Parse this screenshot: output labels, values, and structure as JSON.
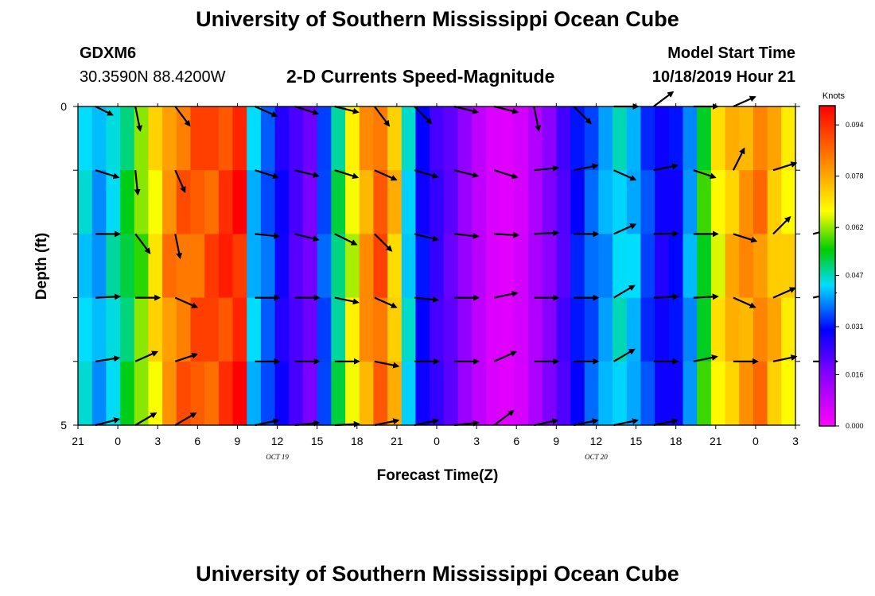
{
  "header": {
    "title": "University of Southern Mississippi Ocean Cube",
    "station": "GDXM6",
    "coords": "30.3590N 88.4200W",
    "subtitle": "2-D Currents Speed-Magnitude",
    "start_label": "Model Start Time",
    "start_value": "10/18/2019 Hour 21"
  },
  "footer": {
    "title": "University of Southern Mississippi Ocean Cube"
  },
  "chart_data": {
    "type": "heatmap",
    "title": "2-D Currents Speed-Magnitude",
    "xlabel": "Forecast Time(Z)",
    "ylabel": "Depth (ft)",
    "x_ticks": [
      "21",
      "0",
      "3",
      "6",
      "9",
      "12",
      "15",
      "18",
      "21",
      "0",
      "3",
      "6",
      "9",
      "12",
      "15",
      "18",
      "21",
      "0",
      "3"
    ],
    "y_ticks": [
      "0",
      "5"
    ],
    "y_range": [
      0,
      5
    ],
    "date_labels": [
      {
        "text": "OCT 19",
        "tick_index": 5
      },
      {
        "text": "OCT 20",
        "tick_index": 13
      }
    ],
    "colorbar": {
      "unit": "Knots",
      "range": [
        0.0,
        0.1
      ],
      "ticks": [
        "0.094",
        "0.078",
        "0.062",
        "0.047",
        "0.031",
        "0.016",
        "0.000"
      ],
      "tick_values": [
        0.094,
        0.078,
        0.062,
        0.047,
        0.031,
        0.016,
        0.0
      ]
    },
    "speed_profile": [
      [
        0,
        0.044
      ],
      [
        1,
        0.04
      ],
      [
        2,
        0.046
      ],
      [
        3,
        0.052
      ],
      [
        4,
        0.06
      ],
      [
        5,
        0.07
      ],
      [
        6,
        0.082
      ],
      [
        7,
        0.086
      ],
      [
        8,
        0.088
      ],
      [
        9,
        0.09
      ],
      [
        10,
        0.093
      ],
      [
        11,
        0.096
      ],
      [
        11.6,
        0.06
      ],
      [
        12,
        0.042
      ],
      [
        13,
        0.036
      ],
      [
        14,
        0.028
      ],
      [
        15,
        0.022
      ],
      [
        16,
        0.018
      ],
      [
        17,
        0.035
      ],
      [
        18,
        0.05
      ],
      [
        19,
        0.066
      ],
      [
        20,
        0.08
      ],
      [
        21,
        0.088
      ],
      [
        22,
        0.074
      ],
      [
        22.7,
        0.06
      ],
      [
        23,
        0.044
      ],
      [
        24,
        0.03
      ],
      [
        25,
        0.024
      ],
      [
        26,
        0.02
      ],
      [
        27,
        0.014
      ],
      [
        28,
        0.009
      ],
      [
        29,
        0.005
      ],
      [
        30,
        0.004
      ],
      [
        31,
        0.006
      ],
      [
        32,
        0.011
      ],
      [
        33,
        0.016
      ],
      [
        34,
        0.022
      ],
      [
        35,
        0.031
      ],
      [
        36,
        0.036
      ],
      [
        37,
        0.04
      ],
      [
        38,
        0.045
      ],
      [
        39,
        0.042
      ],
      [
        40,
        0.034
      ],
      [
        41,
        0.028
      ],
      [
        42,
        0.03
      ],
      [
        43,
        0.04
      ],
      [
        44,
        0.055
      ],
      [
        45,
        0.068
      ],
      [
        46,
        0.076
      ],
      [
        47,
        0.08
      ],
      [
        48,
        0.083
      ],
      [
        49,
        0.075
      ],
      [
        50,
        0.07
      ],
      [
        51,
        0.066
      ]
    ],
    "arrow_rows": [
      [
        [
          1,
          0.7,
          -0.35
        ],
        [
          2,
          0.2,
          -1
        ],
        [
          3,
          0.6,
          -0.8
        ],
        [
          5,
          0.9,
          -0.4
        ],
        [
          6,
          0.95,
          -0.3
        ],
        [
          7,
          0.97,
          -0.24
        ],
        [
          8,
          0.6,
          -0.8
        ],
        [
          9,
          0.7,
          -0.7
        ],
        [
          10,
          0.97,
          -0.24
        ],
        [
          11,
          0.97,
          -0.24
        ],
        [
          12,
          0.2,
          -1
        ],
        [
          13,
          0.7,
          -0.7
        ],
        [
          14,
          1,
          0
        ],
        [
          15,
          0.8,
          0.6
        ],
        [
          16,
          1,
          0
        ],
        [
          17,
          0.9,
          0.4
        ]
      ],
      [
        [
          1,
          0.95,
          -0.3
        ],
        [
          2,
          0.1,
          -1
        ],
        [
          3,
          0.4,
          -0.9
        ],
        [
          5,
          0.95,
          -0.3
        ],
        [
          6,
          0.97,
          -0.24
        ],
        [
          7,
          0.95,
          -0.3
        ],
        [
          8,
          0.9,
          -0.4
        ],
        [
          9,
          0.96,
          -0.28
        ],
        [
          10,
          0.97,
          -0.24
        ],
        [
          11,
          0.95,
          -0.3
        ],
        [
          12,
          0.99,
          0.1
        ],
        [
          13,
          0.98,
          0.2
        ],
        [
          14,
          0.9,
          -0.4
        ],
        [
          15,
          0.98,
          0.2
        ],
        [
          16,
          0.9,
          -0.3
        ],
        [
          17,
          0.45,
          0.9
        ],
        [
          18,
          0.95,
          0.3
        ]
      ],
      [
        [
          1,
          1,
          0
        ],
        [
          2,
          0.6,
          -0.8
        ],
        [
          3,
          0.2,
          -1
        ],
        [
          5,
          0.99,
          -0.1
        ],
        [
          6,
          0.97,
          -0.24
        ],
        [
          7,
          0.9,
          -0.44
        ],
        [
          8,
          0.7,
          -0.7
        ],
        [
          9,
          0.97,
          -0.24
        ],
        [
          10,
          0.99,
          -0.1
        ],
        [
          11,
          1,
          -0.05
        ],
        [
          12,
          1,
          0.05
        ],
        [
          13,
          1,
          0
        ],
        [
          14,
          0.9,
          0.4
        ],
        [
          15,
          1,
          0.02
        ],
        [
          16,
          1,
          0
        ],
        [
          17,
          0.95,
          -0.3
        ],
        [
          18,
          0.7,
          0.7
        ],
        [
          19,
          0.95,
          0.25
        ]
      ],
      [
        [
          1,
          1,
          0.05
        ],
        [
          2,
          1,
          0
        ],
        [
          3,
          0.9,
          -0.4
        ],
        [
          5,
          1,
          0
        ],
        [
          6,
          1,
          0
        ],
        [
          7,
          0.97,
          -0.2
        ],
        [
          8,
          0.9,
          -0.4
        ],
        [
          9,
          0.97,
          -0.1
        ],
        [
          10,
          1,
          0
        ],
        [
          11,
          0.95,
          0.2
        ],
        [
          12,
          1,
          0
        ],
        [
          13,
          1,
          0
        ],
        [
          14,
          0.85,
          0.5
        ],
        [
          15,
          1,
          0.05
        ],
        [
          16,
          1,
          0.05
        ],
        [
          17,
          0.9,
          -0.4
        ],
        [
          18,
          0.9,
          0.4
        ],
        [
          19,
          0.95,
          0.2
        ]
      ],
      [
        [
          1,
          0.97,
          0.15
        ],
        [
          2,
          0.9,
          0.4
        ],
        [
          3,
          0.9,
          0.3
        ],
        [
          5,
          1,
          0
        ],
        [
          6,
          1,
          0
        ],
        [
          7,
          1,
          0
        ],
        [
          8,
          0.98,
          -0.2
        ],
        [
          9,
          1,
          0
        ],
        [
          10,
          1,
          0
        ],
        [
          11,
          0.9,
          0.4
        ],
        [
          12,
          1,
          0
        ],
        [
          13,
          1,
          0
        ],
        [
          14,
          0.85,
          0.5
        ],
        [
          15,
          1,
          0
        ],
        [
          16,
          0.97,
          0.2
        ],
        [
          17,
          1,
          0
        ],
        [
          18,
          0.95,
          0.2
        ],
        [
          19,
          1,
          0
        ]
      ],
      [
        [
          1,
          0.97,
          0.25
        ],
        [
          2,
          0.85,
          0.5
        ],
        [
          3,
          0.85,
          0.5
        ],
        [
          5,
          0.97,
          0.2
        ],
        [
          6,
          0.99,
          0.1
        ],
        [
          7,
          1,
          0.05
        ],
        [
          8,
          0.98,
          0.2
        ],
        [
          9,
          0.97,
          0.2
        ],
        [
          10,
          0.99,
          0.1
        ],
        [
          11,
          0.8,
          0.6
        ],
        [
          12,
          0.97,
          0.2
        ],
        [
          13,
          0.98,
          0.2
        ],
        [
          14,
          0.98,
          0.2
        ],
        [
          15,
          0.98,
          0.2
        ]
      ]
    ]
  }
}
